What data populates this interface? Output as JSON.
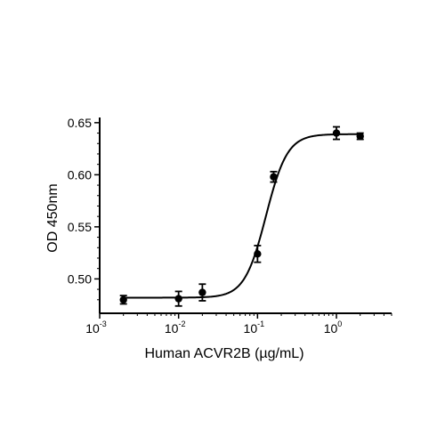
{
  "chart_data": {
    "type": "scatter",
    "title": "",
    "xlabel": "Human ACVR2B (µg/mL)",
    "ylabel": "OD 450nm",
    "x_scale": "log",
    "xlim": [
      0.001,
      5
    ],
    "ylim": [
      0.467,
      0.655
    ],
    "x_ticks": [
      {
        "value": 0.001,
        "base": "10",
        "exp": "-3"
      },
      {
        "value": 0.01,
        "base": "10",
        "exp": "-2"
      },
      {
        "value": 0.1,
        "base": "10",
        "exp": "-1"
      },
      {
        "value": 1,
        "base": "10",
        "exp": "0"
      }
    ],
    "y_ticks": [
      {
        "value": 0.5,
        "label": "0.50"
      },
      {
        "value": 0.55,
        "label": "0.55"
      },
      {
        "value": 0.6,
        "label": "0.60"
      },
      {
        "value": 0.65,
        "label": "0.65"
      }
    ],
    "grid": false,
    "series": [
      {
        "points": [
          {
            "x": 0.002,
            "y": 0.48,
            "err": 0.004
          },
          {
            "x": 0.01,
            "y": 0.481,
            "err": 0.007
          },
          {
            "x": 0.02,
            "y": 0.487,
            "err": 0.008
          },
          {
            "x": 0.1,
            "y": 0.524,
            "err": 0.008
          },
          {
            "x": 0.16,
            "y": 0.598,
            "err": 0.005
          },
          {
            "x": 1.0,
            "y": 0.64,
            "err": 0.006
          },
          {
            "x": 2.0,
            "y": 0.637,
            "err": 0.003
          }
        ],
        "fit": {
          "model": "4PL",
          "bottom": 0.482,
          "top": 0.639,
          "ec50": 0.128,
          "hill": 3.2
        }
      }
    ],
    "colors": {
      "marker": "#000000",
      "line": "#000000",
      "axis": "#000000"
    }
  }
}
